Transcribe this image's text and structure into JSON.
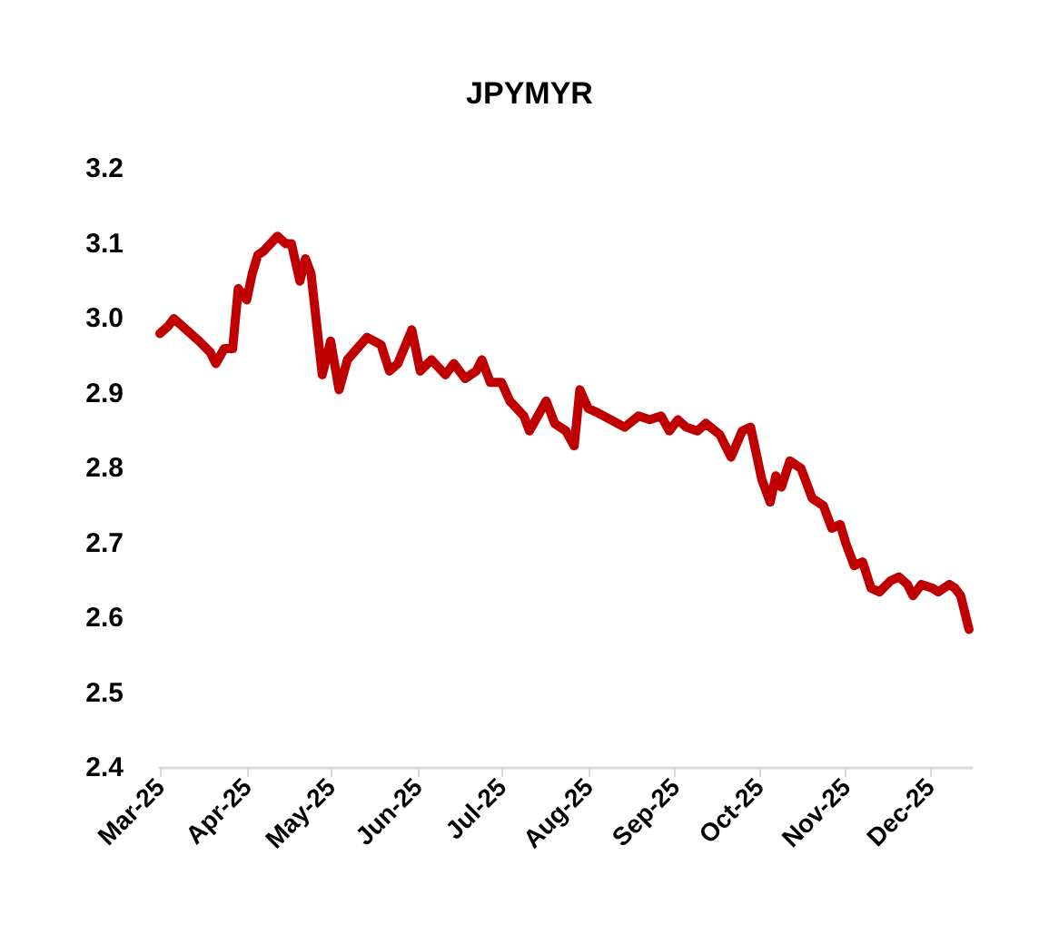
{
  "chart_data": {
    "type": "line",
    "title": "JPYMYR",
    "x": [
      "2025-03-01",
      "2025-03-04",
      "2025-03-06",
      "2025-03-09",
      "2025-03-12",
      "2025-03-15",
      "2025-03-19",
      "2025-03-21",
      "2025-03-24",
      "2025-03-27",
      "2025-03-29",
      "2025-04-01",
      "2025-04-03",
      "2025-04-05",
      "2025-04-07",
      "2025-04-12",
      "2025-04-15",
      "2025-04-17",
      "2025-04-20",
      "2025-04-22",
      "2025-04-24",
      "2025-04-28",
      "2025-05-01",
      "2025-05-04",
      "2025-05-07",
      "2025-05-14",
      "2025-05-19",
      "2025-05-22",
      "2025-05-25",
      "2025-05-30",
      "2025-06-02",
      "2025-06-06",
      "2025-06-11",
      "2025-06-14",
      "2025-06-18",
      "2025-06-22",
      "2025-06-24",
      "2025-06-27",
      "2025-07-01",
      "2025-07-04",
      "2025-07-09",
      "2025-07-11",
      "2025-07-14",
      "2025-07-17",
      "2025-07-20",
      "2025-07-24",
      "2025-07-27",
      "2025-07-29",
      "2025-08-01",
      "2025-08-04",
      "2025-08-09",
      "2025-08-14",
      "2025-08-19",
      "2025-08-23",
      "2025-08-27",
      "2025-08-30",
      "2025-09-02",
      "2025-09-05",
      "2025-09-09",
      "2025-09-12",
      "2025-09-17",
      "2025-09-21",
      "2025-09-25",
      "2025-09-28",
      "2025-10-02",
      "2025-10-05",
      "2025-10-07",
      "2025-10-09",
      "2025-10-12",
      "2025-10-16",
      "2025-10-20",
      "2025-10-24",
      "2025-10-27",
      "2025-10-30",
      "2025-11-01",
      "2025-11-04",
      "2025-11-07",
      "2025-11-10",
      "2025-11-13",
      "2025-11-17",
      "2025-11-20",
      "2025-11-23",
      "2025-11-25",
      "2025-11-28",
      "2025-12-02",
      "2025-12-04",
      "2025-12-08",
      "2025-12-10",
      "2025-12-12",
      "2025-12-15"
    ],
    "series": [
      {
        "color": "#c00000",
        "values": [
          2.98,
          2.99,
          3.0,
          2.99,
          2.98,
          2.97,
          2.955,
          2.94,
          2.96,
          2.96,
          3.04,
          3.025,
          3.06,
          3.085,
          3.09,
          3.11,
          3.1,
          3.1,
          3.05,
          3.08,
          3.06,
          2.925,
          2.97,
          2.905,
          2.945,
          2.975,
          2.965,
          2.93,
          2.94,
          2.985,
          2.93,
          2.945,
          2.925,
          2.94,
          2.92,
          2.93,
          2.945,
          2.915,
          2.915,
          2.89,
          2.87,
          2.85,
          2.87,
          2.89,
          2.86,
          2.85,
          2.83,
          2.905,
          2.88,
          2.875,
          2.865,
          2.855,
          2.87,
          2.865,
          2.87,
          2.85,
          2.865,
          2.855,
          2.85,
          2.86,
          2.845,
          2.815,
          2.85,
          2.855,
          2.785,
          2.755,
          2.79,
          2.775,
          2.81,
          2.8,
          2.76,
          2.75,
          2.72,
          2.725,
          2.7,
          2.67,
          2.675,
          2.64,
          2.635,
          2.65,
          2.655,
          2.645,
          2.63,
          2.645,
          2.64,
          2.635,
          2.645,
          2.64,
          2.63,
          2.585
        ]
      }
    ],
    "xlim": [
      "2025-03-01",
      "2025-12-16"
    ],
    "xticks": [
      {
        "value": "2025-03-01",
        "label": "Mar-25"
      },
      {
        "value": "2025-04-01",
        "label": "Apr-25"
      },
      {
        "value": "2025-05-01",
        "label": "May-25"
      },
      {
        "value": "2025-06-01",
        "label": "Jun-25"
      },
      {
        "value": "2025-07-01",
        "label": "Jul-25"
      },
      {
        "value": "2025-08-01",
        "label": "Aug-25"
      },
      {
        "value": "2025-09-01",
        "label": "Sep-25"
      },
      {
        "value": "2025-10-01",
        "label": "Oct-25"
      },
      {
        "value": "2025-11-01",
        "label": "Nov-25"
      },
      {
        "value": "2025-12-01",
        "label": "Dec-25"
      }
    ],
    "ylim": [
      2.4,
      3.2
    ],
    "yticks": [
      2.4,
      2.5,
      2.6,
      2.7,
      2.8,
      2.9,
      {
        "value": 3,
        "label": "3.0"
      },
      3.1,
      3.2
    ],
    "marker": "none",
    "line_style": "solid"
  }
}
